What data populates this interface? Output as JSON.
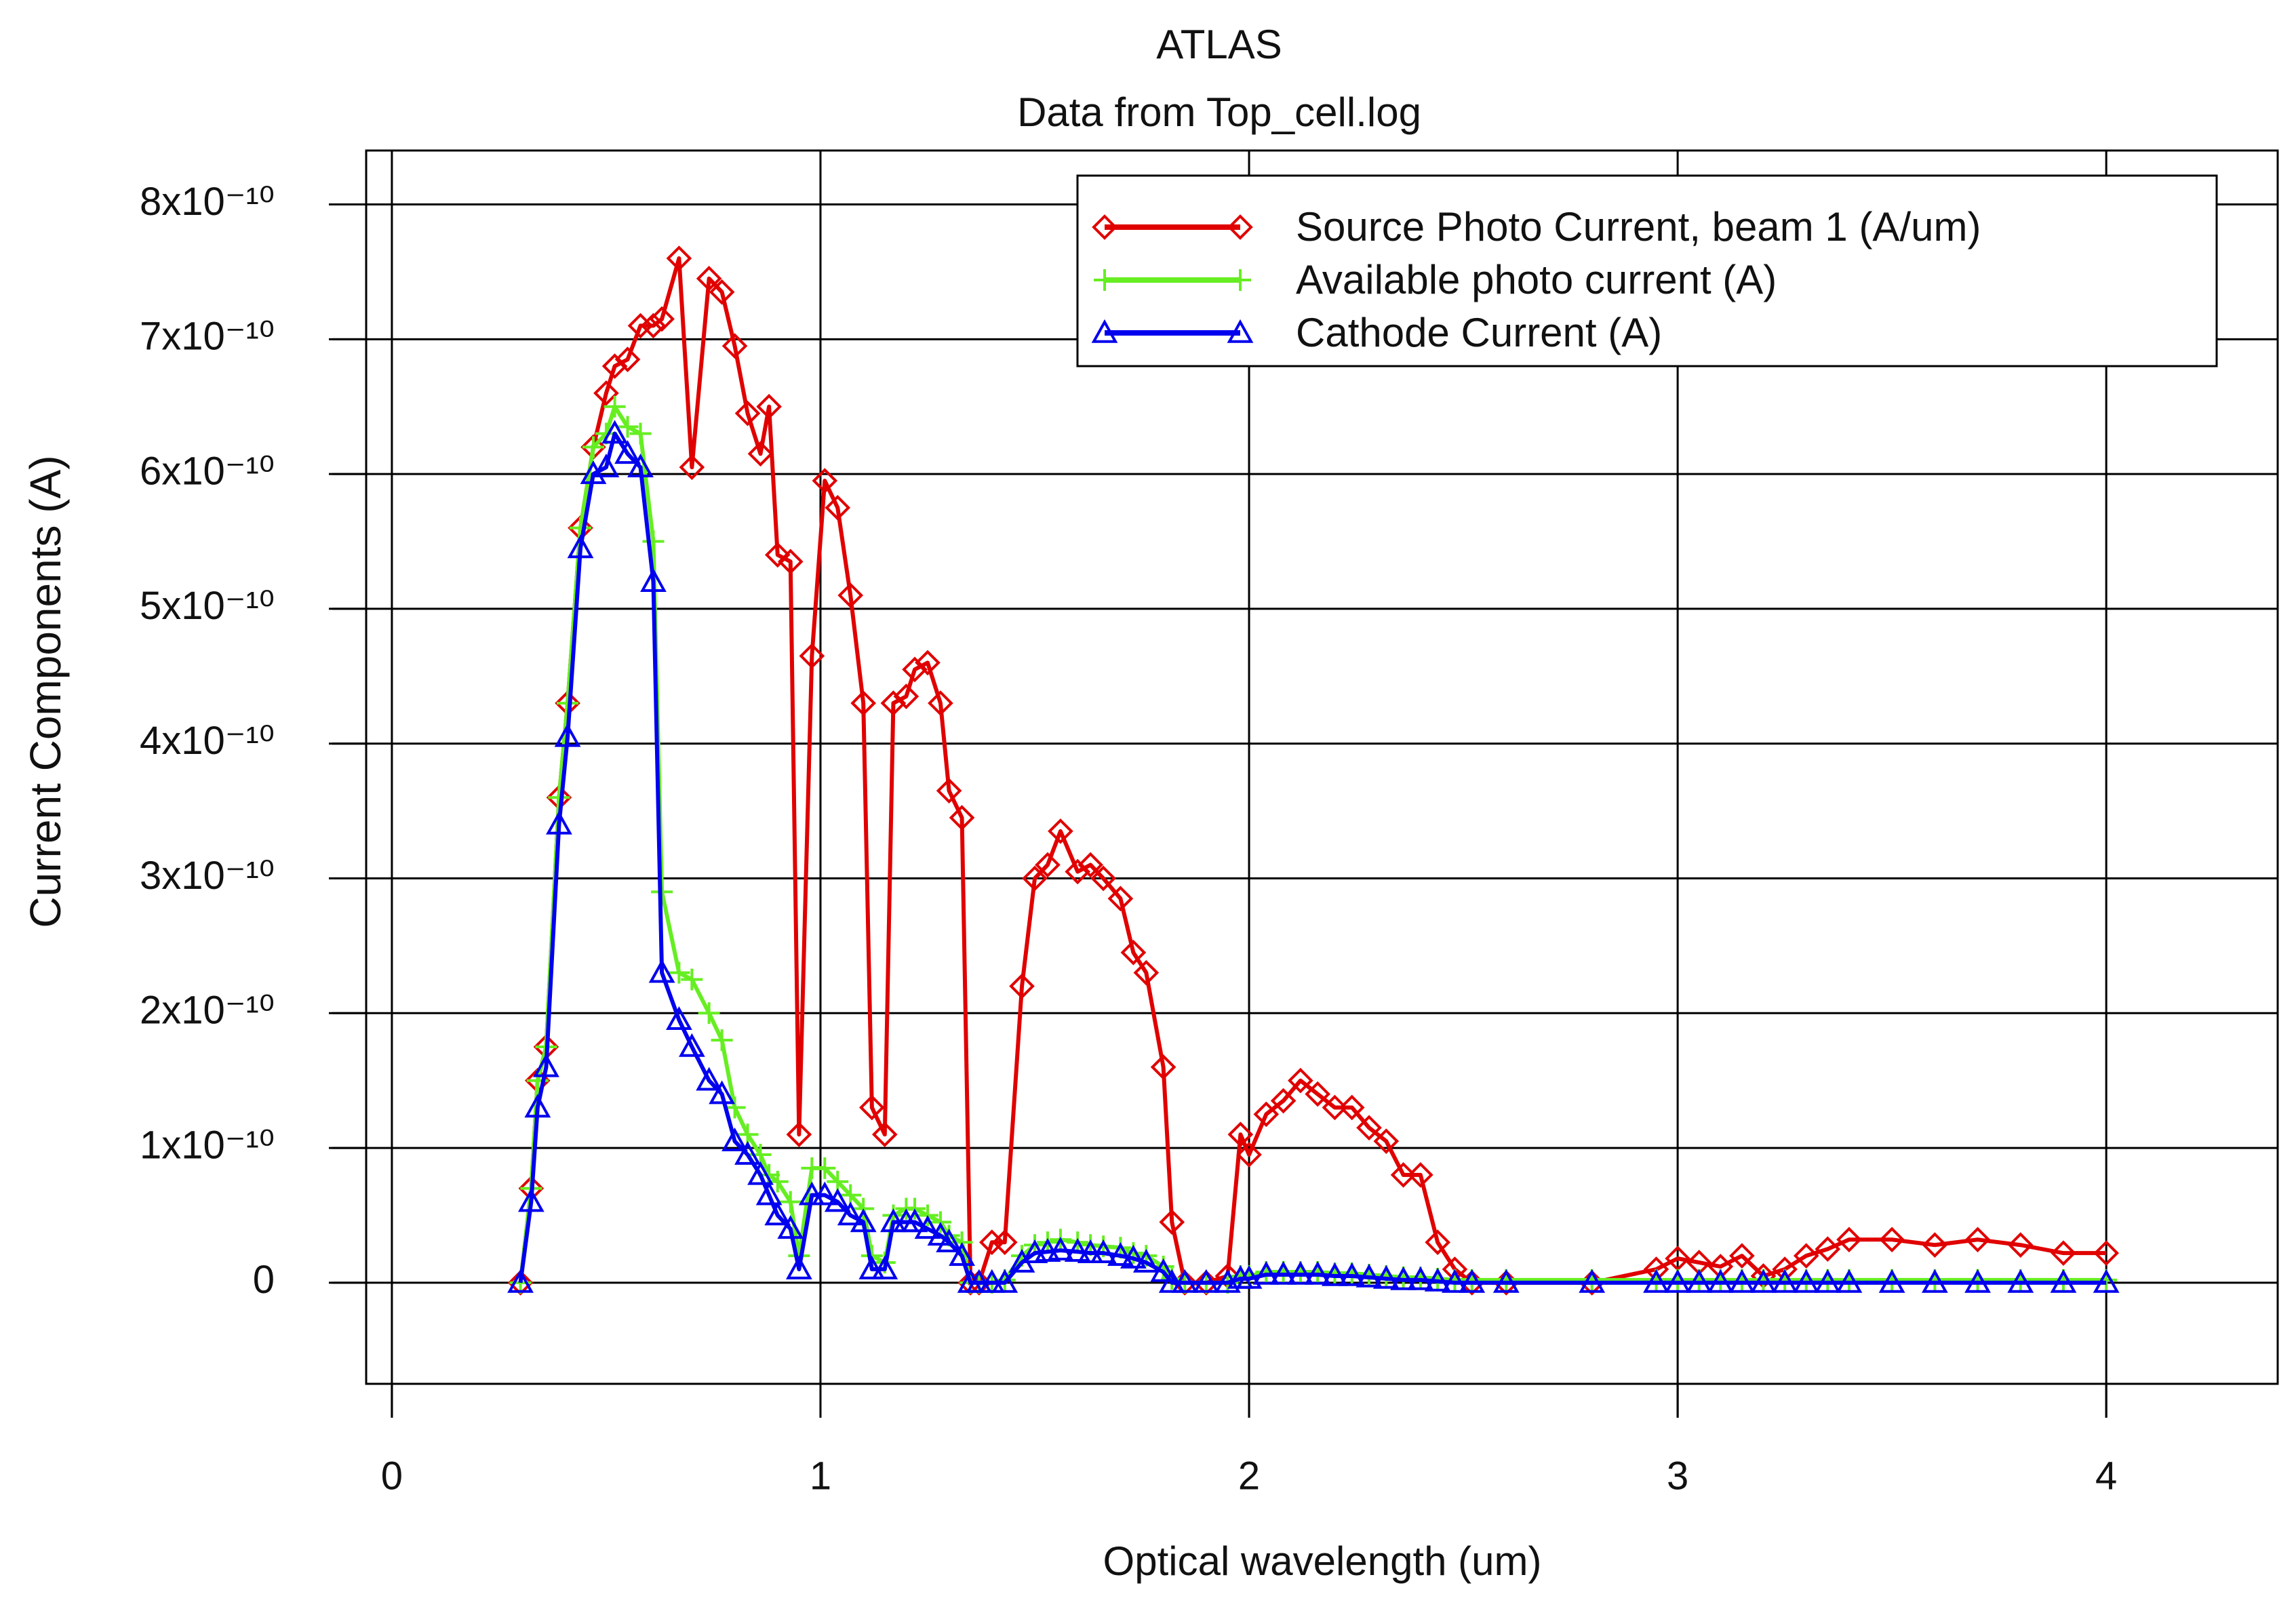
{
  "chart_data": {
    "type": "line",
    "title": "ATLAS",
    "subtitle": "Data from Top_cell.log",
    "x_label": "Optical wavelength (um)",
    "y_label": "Current Components (A)",
    "grid": true,
    "legend": "upper right",
    "xlim": [
      -0.06,
      4.4
    ],
    "xticks": [
      0,
      1,
      2,
      3,
      4
    ],
    "ylim": [
      -7.5e-11,
      8.4e-10
    ],
    "yticks": [
      0,
      {
        "value": 1e-10,
        "label": "1x10⁻¹⁰"
      },
      {
        "value": 2e-10,
        "label": "2x10⁻¹⁰"
      },
      {
        "value": 3e-10,
        "label": "3x10⁻¹⁰"
      },
      {
        "value": 4e-10,
        "label": "4x10⁻¹⁰"
      },
      {
        "value": 5e-10,
        "label": "5x10⁻¹⁰"
      },
      {
        "value": 6e-10,
        "label": "6x10⁻¹⁰"
      },
      {
        "value": 7e-10,
        "label": "7x10⁻¹⁰"
      },
      {
        "value": 8e-10,
        "label": "8x10⁻¹⁰"
      }
    ],
    "x": [
      0.3,
      0.325,
      0.34,
      0.36,
      0.39,
      0.41,
      0.44,
      0.47,
      0.5,
      0.52,
      0.55,
      0.58,
      0.61,
      0.63,
      0.67,
      0.7,
      0.74,
      0.77,
      0.8,
      0.83,
      0.86,
      0.88,
      0.9,
      0.93,
      0.95,
      0.98,
      1.01,
      1.04,
      1.07,
      1.1,
      1.12,
      1.15,
      1.17,
      1.2,
      1.22,
      1.25,
      1.28,
      1.3,
      1.33,
      1.35,
      1.37,
      1.4,
      1.43,
      1.47,
      1.5,
      1.53,
      1.56,
      1.6,
      1.63,
      1.66,
      1.7,
      1.73,
      1.76,
      1.8,
      1.82,
      1.85,
      1.9,
      1.95,
      1.98,
      2.0,
      2.04,
      2.08,
      2.12,
      2.16,
      2.2,
      2.24,
      2.28,
      2.32,
      2.36,
      2.4,
      2.44,
      2.48,
      2.52,
      2.6,
      2.8,
      2.95,
      3.0,
      3.05,
      3.1,
      3.15,
      3.2,
      3.25,
      3.3,
      3.35,
      3.4,
      3.5,
      3.6,
      3.7,
      3.8,
      3.9,
      4.0
    ],
    "series": [
      {
        "name": "Source Photo Current, beam 1 (A/um)",
        "color": "#e00000",
        "marker": "diamond",
        "values": [
          0,
          7e-11,
          1.5e-10,
          1.75e-10,
          3.6e-10,
          4.3e-10,
          5.6e-10,
          6.2e-10,
          6.6e-10,
          6.8e-10,
          6.85e-10,
          7.1e-10,
          7.1e-10,
          7.15e-10,
          7.6e-10,
          6.05e-10,
          7.45e-10,
          7.35e-10,
          6.95e-10,
          6.45e-10,
          6.15e-10,
          6.5e-10,
          5.4e-10,
          5.35e-10,
          1.1e-10,
          4.65e-10,
          5.95e-10,
          5.75e-10,
          5.1e-10,
          4.3e-10,
          1.3e-10,
          1.1e-10,
          4.3e-10,
          4.35e-10,
          4.55e-10,
          4.6e-10,
          4.3e-10,
          3.65e-10,
          3.45e-10,
          0,
          0,
          3e-11,
          3e-11,
          2.2e-10,
          3e-10,
          3.1e-10,
          3.35e-10,
          3.05e-10,
          3.1e-10,
          3e-10,
          2.85e-10,
          2.45e-10,
          2.3e-10,
          1.6e-10,
          4.5e-11,
          0,
          0,
          5e-12,
          1.1e-10,
          9.5e-11,
          1.25e-10,
          1.35e-10,
          1.5e-10,
          1.4e-10,
          1.3e-10,
          1.3e-10,
          1.15e-10,
          1.05e-10,
          8e-11,
          8e-11,
          3e-11,
          1e-11,
          0,
          0,
          0,
          1e-11,
          1.8e-11,
          1.5e-11,
          1.2e-11,
          2e-11,
          5e-12,
          1e-11,
          2e-11,
          2.5e-11,
          3.2e-11,
          3.2e-11,
          2.8e-11,
          3.2e-11,
          2.8e-11,
          2.2e-11,
          2.2e-11
        ]
      },
      {
        "name": "Available photo current (A)",
        "color": "#66ee22",
        "marker": "plus",
        "values": [
          0,
          7e-11,
          1.5e-10,
          1.75e-10,
          3.6e-10,
          4.3e-10,
          5.6e-10,
          6.2e-10,
          6.3e-10,
          6.5e-10,
          6.35e-10,
          6.3e-10,
          5.5e-10,
          2.9e-10,
          2.3e-10,
          2.25e-10,
          2e-10,
          1.8e-10,
          1.3e-10,
          1.1e-10,
          9.5e-11,
          8e-11,
          7.5e-11,
          6e-11,
          2e-11,
          8.5e-11,
          8.5e-11,
          7.5e-11,
          6.5e-11,
          5.5e-11,
          2e-11,
          1.5e-11,
          5e-11,
          5.5e-11,
          5.5e-11,
          5e-11,
          4.5e-11,
          3.5e-11,
          3e-11,
          0,
          0,
          0,
          2e-12,
          2e-11,
          2.8e-11,
          3e-11,
          3.2e-11,
          3e-11,
          2.8e-11,
          2.7e-11,
          2.6e-11,
          2.2e-11,
          2e-11,
          1.2e-11,
          3e-12,
          0,
          0,
          0,
          5e-12,
          5e-12,
          8e-12,
          8e-12,
          8e-12,
          8e-12,
          7e-12,
          7e-12,
          6e-12,
          5e-12,
          4e-12,
          4e-12,
          3e-12,
          2e-12,
          2e-12,
          2e-12,
          2e-12,
          2e-12,
          2e-12,
          2e-12,
          2e-12,
          2e-12,
          2e-12,
          2e-12,
          2e-12,
          2e-12,
          2e-12,
          2e-12,
          2e-12,
          2e-12,
          2e-12,
          2e-12,
          2e-12
        ]
      },
      {
        "name": "Cathode Current (A)",
        "color": "#0000ee",
        "marker": "triangle",
        "values": [
          0,
          6e-11,
          1.3e-10,
          1.6e-10,
          3.4e-10,
          4.05e-10,
          5.45e-10,
          6e-10,
          6.05e-10,
          6.3e-10,
          6.15e-10,
          6.05e-10,
          5.2e-10,
          2.3e-10,
          1.95e-10,
          1.75e-10,
          1.5e-10,
          1.4e-10,
          1.05e-10,
          9.5e-11,
          8e-11,
          6.5e-11,
          5e-11,
          4e-11,
          1e-11,
          6.5e-11,
          6.5e-11,
          6e-11,
          5e-11,
          4.5e-11,
          1e-11,
          1e-11,
          4.5e-11,
          4.5e-11,
          4.5e-11,
          4e-11,
          3.5e-11,
          3e-11,
          2e-11,
          0,
          0,
          0,
          0,
          1.5e-11,
          2.2e-11,
          2.3e-11,
          2.4e-11,
          2.3e-11,
          2.2e-11,
          2.2e-11,
          2e-11,
          1.8e-11,
          1.5e-11,
          8e-12,
          0,
          0,
          0,
          0,
          3e-12,
          3e-12,
          6e-12,
          6e-12,
          6e-12,
          6e-12,
          5e-12,
          5e-12,
          4e-12,
          3e-12,
          2e-12,
          2e-12,
          1e-12,
          0,
          0,
          0,
          0,
          0,
          0,
          0,
          0,
          0,
          0,
          0,
          0,
          0,
          0,
          0,
          0,
          0,
          0,
          0,
          0
        ]
      }
    ]
  }
}
